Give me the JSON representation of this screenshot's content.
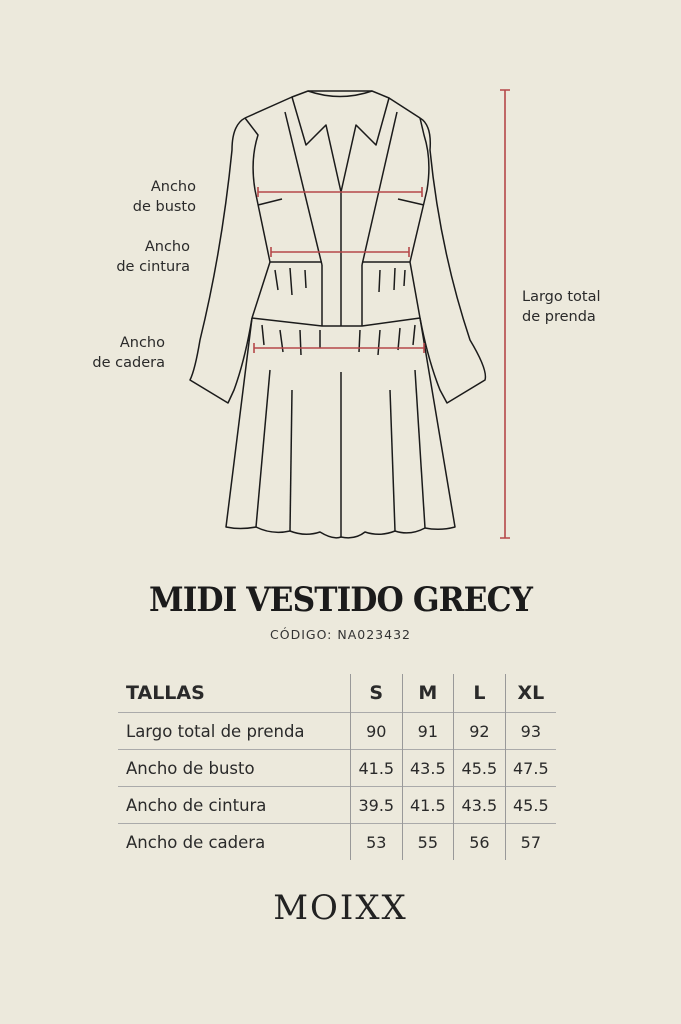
{
  "diagram": {
    "labels": {
      "bust": [
        "Ancho",
        "de busto"
      ],
      "waist": [
        "Ancho",
        "de cintura"
      ],
      "hip": [
        "Ancho",
        "de cadera"
      ],
      "length": [
        "Largo total",
        "de prenda"
      ]
    },
    "measure_color": "#b5484a",
    "line_color": "#1b1b1b"
  },
  "product": {
    "title": "MIDI VESTIDO GRECY",
    "code": "CÓDIGO: NA023432"
  },
  "size_table": {
    "header": [
      "TALLAS",
      "S",
      "M",
      "L",
      "XL"
    ],
    "rows": [
      {
        "label": "Largo total de prenda",
        "values": [
          "90",
          "91",
          "92",
          "93"
        ]
      },
      {
        "label": "Ancho de busto",
        "values": [
          "41.5",
          "43.5",
          "45.5",
          "47.5"
        ]
      },
      {
        "label": "Ancho de cintura",
        "values": [
          "39.5",
          "41.5",
          "43.5",
          "45.5"
        ]
      },
      {
        "label": "Ancho de cadera",
        "values": [
          "53",
          "55",
          "56",
          "57"
        ]
      }
    ]
  },
  "brand": {
    "logo": "MOIXX"
  },
  "background_color": "#ece9dc"
}
